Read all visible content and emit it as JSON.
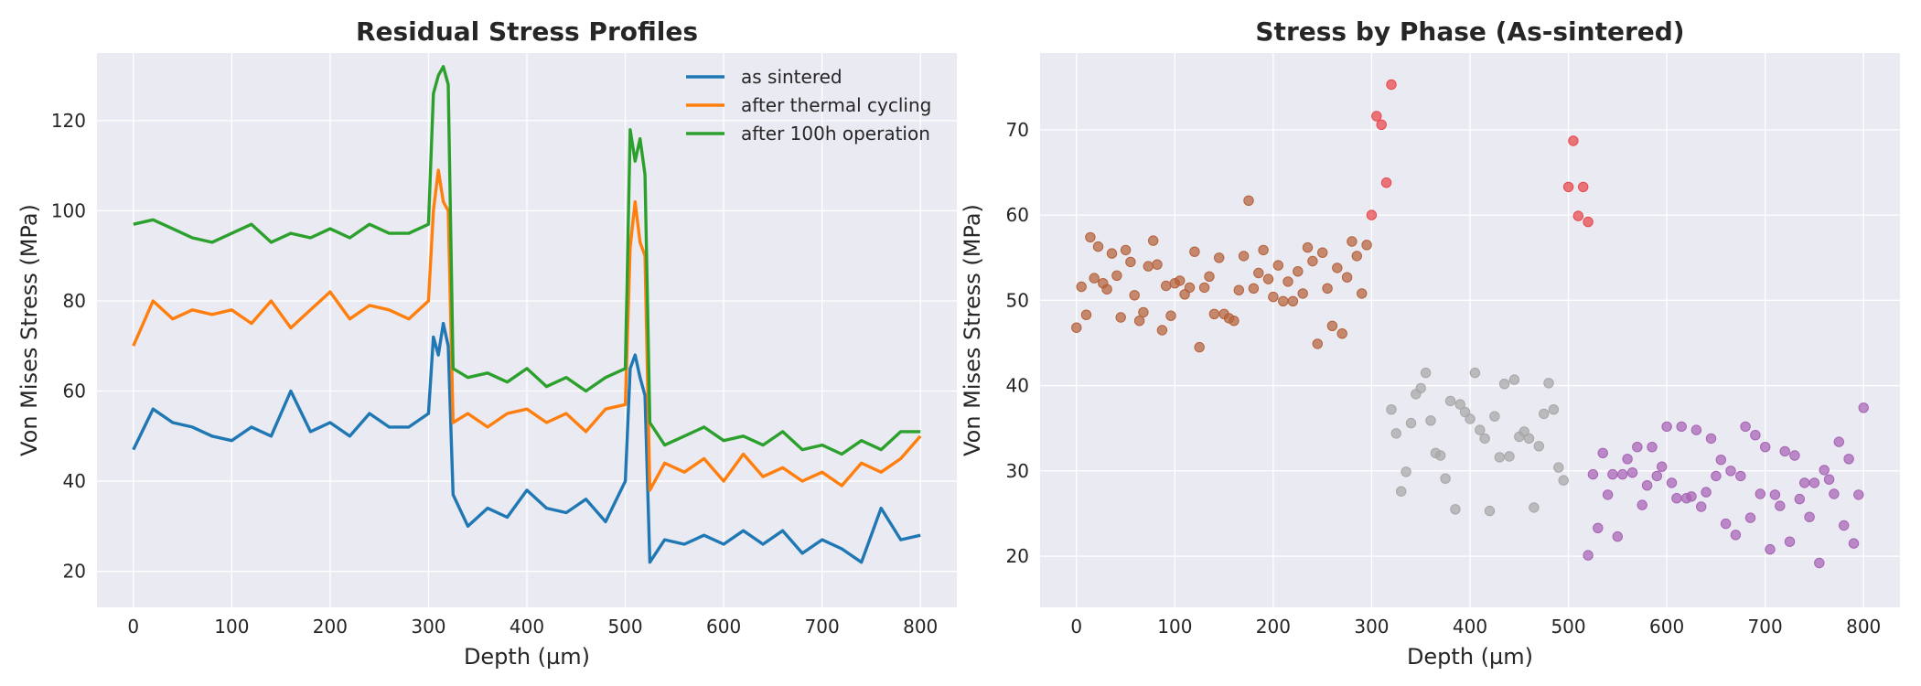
{
  "chart_data": [
    {
      "type": "line",
      "title": "Residual Stress Profiles",
      "xlabel": "Depth (µm)",
      "ylabel": "Von Mises Stress (MPa)",
      "xlim": [
        -37,
        837
      ],
      "ylim": [
        12,
        135
      ],
      "xticks": [
        0,
        100,
        200,
        300,
        400,
        500,
        600,
        700,
        800
      ],
      "yticks": [
        20,
        40,
        60,
        80,
        100,
        120
      ],
      "grid": true,
      "legend": "top-right",
      "series": [
        {
          "name": "as sintered",
          "color": "#1f77b4",
          "x": [
            0,
            20,
            40,
            60,
            80,
            100,
            120,
            140,
            160,
            180,
            200,
            220,
            240,
            260,
            280,
            300,
            305,
            310,
            315,
            320,
            325,
            340,
            360,
            380,
            400,
            420,
            440,
            460,
            480,
            500,
            505,
            510,
            515,
            520,
            525,
            540,
            560,
            580,
            600,
            620,
            640,
            660,
            680,
            700,
            720,
            740,
            760,
            780,
            800
          ],
          "y": [
            47,
            56,
            53,
            52,
            50,
            49,
            52,
            50,
            60,
            51,
            53,
            50,
            55,
            52,
            52,
            55,
            72,
            68,
            75,
            70,
            37,
            30,
            34,
            32,
            38,
            34,
            33,
            36,
            31,
            40,
            65,
            68,
            63,
            59,
            22,
            27,
            26,
            28,
            26,
            29,
            26,
            29,
            24,
            27,
            25,
            22,
            34,
            27,
            28
          ]
        },
        {
          "name": "after thermal cycling",
          "color": "#ff7f0e",
          "x": [
            0,
            20,
            40,
            60,
            80,
            100,
            120,
            140,
            160,
            180,
            200,
            220,
            240,
            260,
            280,
            300,
            305,
            310,
            315,
            320,
            325,
            340,
            360,
            380,
            400,
            420,
            440,
            460,
            480,
            500,
            505,
            510,
            515,
            520,
            525,
            540,
            560,
            580,
            600,
            620,
            640,
            660,
            680,
            700,
            720,
            740,
            760,
            780,
            800
          ],
          "y": [
            70,
            80,
            76,
            78,
            77,
            78,
            75,
            80,
            74,
            78,
            82,
            76,
            79,
            78,
            76,
            80,
            100,
            109,
            102,
            100,
            53,
            55,
            52,
            55,
            56,
            53,
            55,
            51,
            56,
            57,
            92,
            102,
            93,
            90,
            38,
            44,
            42,
            45,
            40,
            46,
            41,
            43,
            40,
            42,
            39,
            44,
            42,
            45,
            50
          ]
        },
        {
          "name": "after 100h operation",
          "color": "#2ca02c",
          "x": [
            0,
            20,
            40,
            60,
            80,
            100,
            120,
            140,
            160,
            180,
            200,
            220,
            240,
            260,
            280,
            300,
            305,
            310,
            315,
            320,
            325,
            340,
            360,
            380,
            400,
            420,
            440,
            460,
            480,
            500,
            505,
            510,
            515,
            520,
            525,
            540,
            560,
            580,
            600,
            620,
            640,
            660,
            680,
            700,
            720,
            740,
            760,
            780,
            800
          ],
          "y": [
            97,
            98,
            96,
            94,
            93,
            95,
            97,
            93,
            95,
            94,
            96,
            94,
            97,
            95,
            95,
            97,
            126,
            130,
            132,
            128,
            65,
            63,
            64,
            62,
            65,
            61,
            63,
            60,
            63,
            65,
            118,
            111,
            116,
            108,
            53,
            48,
            50,
            52,
            49,
            50,
            48,
            51,
            47,
            48,
            46,
            49,
            47,
            51,
            51
          ]
        }
      ]
    },
    {
      "type": "scatter",
      "title": "Stress by Phase (As-sintered)",
      "xlabel": "Depth (µm)",
      "ylabel": "Von Mises Stress (MPa)",
      "xlim": [
        -37,
        837
      ],
      "ylim": [
        14,
        79
      ],
      "xticks": [
        0,
        100,
        200,
        300,
        400,
        500,
        600,
        700,
        800
      ],
      "yticks": [
        20,
        30,
        40,
        50,
        60,
        70
      ],
      "grid": true,
      "series": [
        {
          "color": "#b5623a",
          "x": [
            0,
            5,
            10,
            14,
            18,
            22,
            27,
            31,
            36,
            41,
            45,
            50,
            55,
            59,
            64,
            68,
            73,
            78,
            82,
            87,
            91,
            96,
            100,
            105,
            110,
            115,
            120,
            125,
            130,
            135,
            140,
            145,
            150,
            155,
            160,
            165,
            170,
            175,
            180,
            185,
            190,
            195,
            200,
            205,
            210,
            215,
            220,
            225,
            230,
            235,
            240,
            245,
            250,
            255,
            260,
            265,
            270,
            275,
            280,
            285,
            290,
            295
          ],
          "y": [
            46.8,
            51.6,
            48.3,
            57.4,
            52.6,
            56.3,
            52.0,
            51.3,
            55.5,
            52.9,
            48.0,
            55.9,
            54.5,
            50.6,
            47.6,
            48.6,
            54.0,
            57.0,
            54.2,
            46.5,
            51.7,
            48.2,
            52.0,
            52.3,
            50.7,
            51.5,
            55.7,
            44.5,
            51.5,
            52.8,
            48.4,
            55.0,
            48.4,
            47.9,
            47.6,
            51.2,
            55.2,
            61.7,
            51.4,
            53.2,
            55.9,
            52.5,
            50.4,
            54.1,
            49.9,
            52.2,
            49.9,
            53.4,
            50.8,
            56.2,
            54.6,
            44.9,
            55.6,
            51.4,
            47.0,
            53.8,
            46.1,
            52.7,
            56.9,
            55.2,
            50.8,
            56.5
          ]
        },
        {
          "color": "#e8474b",
          "x": [
            300,
            305,
            310,
            315,
            320,
            500,
            505,
            510,
            515,
            520
          ],
          "y": [
            60.0,
            71.6,
            70.6,
            63.8,
            75.3,
            63.3,
            68.7,
            59.9,
            63.3,
            59.2
          ]
        },
        {
          "color": "#a7a7a7",
          "x": [
            320,
            325,
            330,
            335,
            340,
            345,
            350,
            355,
            360,
            365,
            370,
            375,
            380,
            385,
            390,
            395,
            400,
            405,
            410,
            415,
            420,
            425,
            430,
            435,
            440,
            445,
            450,
            455,
            460,
            465,
            470,
            475,
            480,
            485,
            490,
            495
          ],
          "y": [
            37.2,
            34.4,
            27.6,
            29.9,
            35.6,
            39.0,
            39.7,
            41.5,
            35.9,
            32.1,
            31.8,
            29.1,
            38.2,
            25.5,
            37.8,
            36.9,
            36.1,
            41.5,
            34.8,
            33.8,
            25.3,
            36.4,
            31.6,
            40.2,
            31.7,
            40.7,
            34.0,
            34.6,
            33.8,
            25.7,
            32.9,
            36.7,
            40.3,
            37.2,
            30.4,
            28.9
          ]
        },
        {
          "color": "#a763b4",
          "x": [
            520,
            525,
            530,
            535,
            540,
            545,
            550,
            555,
            560,
            565,
            570,
            575,
            580,
            585,
            590,
            595,
            600,
            605,
            610,
            615,
            620,
            625,
            630,
            635,
            640,
            645,
            650,
            655,
            660,
            665,
            670,
            675,
            680,
            685,
            690,
            695,
            700,
            705,
            710,
            715,
            720,
            725,
            730,
            735,
            740,
            745,
            750,
            755,
            760,
            765,
            770,
            775,
            780,
            785,
            790,
            795,
            800
          ],
          "y": [
            20.1,
            29.6,
            23.3,
            32.1,
            27.2,
            29.6,
            22.3,
            29.6,
            31.4,
            29.8,
            32.8,
            26.0,
            28.3,
            32.8,
            29.4,
            30.5,
            35.2,
            28.6,
            26.8,
            35.2,
            26.8,
            27.0,
            34.8,
            25.8,
            27.5,
            33.8,
            29.4,
            31.3,
            23.8,
            30.0,
            22.5,
            29.4,
            35.2,
            24.5,
            34.2,
            27.3,
            32.8,
            20.8,
            27.2,
            25.9,
            32.3,
            21.7,
            31.8,
            26.7,
            28.6,
            24.6,
            28.6,
            19.2,
            30.1,
            29.0,
            27.3,
            33.4,
            23.6,
            31.4,
            21.5,
            27.2,
            37.4
          ]
        }
      ]
    }
  ]
}
